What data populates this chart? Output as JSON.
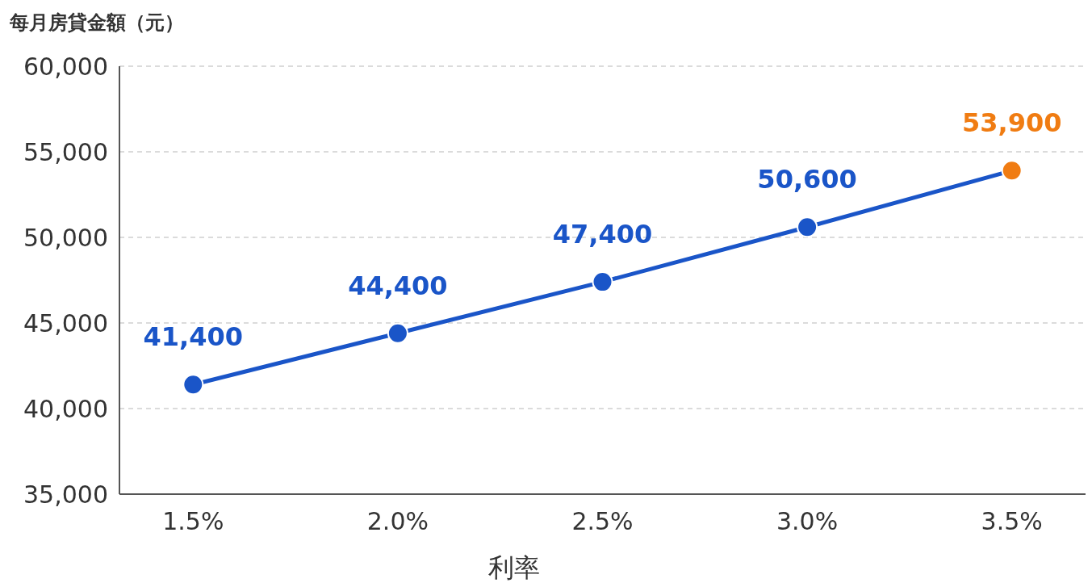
{
  "chart_data": {
    "type": "line",
    "title": "每月房貸金額（元）",
    "xlabel": "利率",
    "categories": [
      "1.5%",
      "2.0%",
      "2.5%",
      "3.0%",
      "3.5%"
    ],
    "series": [
      {
        "color": "#1a55c8",
        "colors": [
          "#1a55c8",
          "#1a55c8",
          "#1a55c8",
          "#1a55c8",
          "#f07c12"
        ],
        "values": [
          41400,
          44400,
          47400,
          50600,
          53900
        ],
        "value_labels": [
          "41,400",
          "44,400",
          "47,400",
          "50,600",
          "53,900"
        ]
      }
    ],
    "ylim": [
      35000,
      60000
    ],
    "yticks": [
      {
        "value": 35000,
        "label": "35,000"
      },
      {
        "value": 40000,
        "label": "40,000"
      },
      {
        "value": 45000,
        "label": "45,000"
      },
      {
        "value": 50000,
        "label": "50,000"
      },
      {
        "value": 55000,
        "label": "55,000"
      },
      {
        "value": 60000,
        "label": "60,000"
      }
    ],
    "grid": "y",
    "marker": "circle",
    "line_style": "solid"
  }
}
